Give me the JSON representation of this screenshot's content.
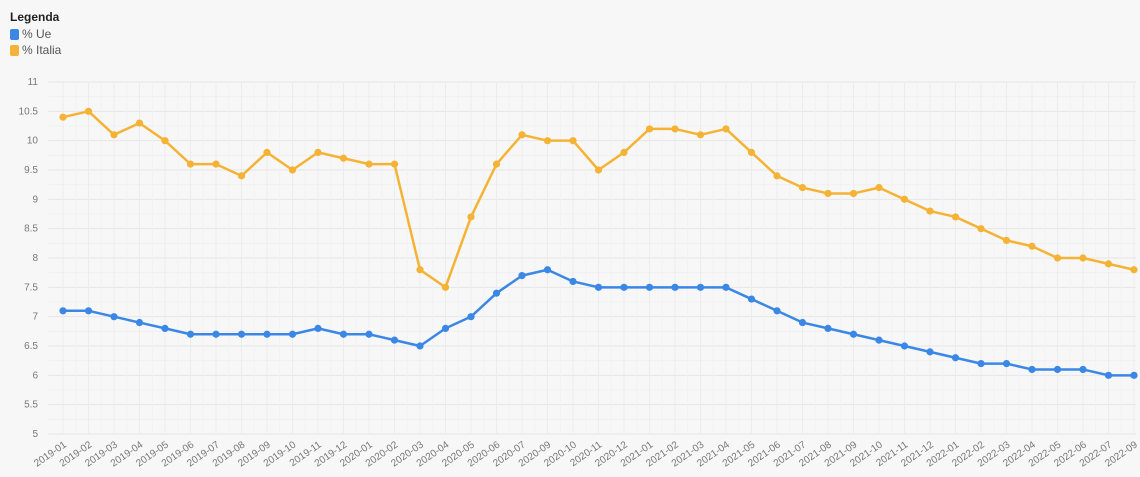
{
  "legend": {
    "title": "Legenda",
    "items": [
      {
        "label": "% Ue",
        "color": "#3b87e6"
      },
      {
        "label": "% Italia",
        "color": "#f5b335"
      }
    ]
  },
  "chart_data": {
    "type": "line",
    "x": [
      "2019-01",
      "2019-02",
      "2019-03",
      "2019-04",
      "2019-05",
      "2019-06",
      "2019-07",
      "2019-08",
      "2019-09",
      "2019-10",
      "2019-11",
      "2019-12",
      "2020-01",
      "2020-02",
      "2020-03",
      "2020-04",
      "2020-05",
      "2020-06",
      "2020-07",
      "2020-09",
      "2020-10",
      "2020-11",
      "2020-12",
      "2021-01",
      "2021-02",
      "2021-03",
      "2021-04",
      "2021-05",
      "2021-06",
      "2021-07",
      "2021-08",
      "2021-09",
      "2021-10",
      "2021-11",
      "2021-12",
      "2022-01",
      "2022-02",
      "2022-03",
      "2022-04",
      "2022-05",
      "2022-06",
      "2022-07",
      "2022-09"
    ],
    "ylim": [
      5,
      11
    ],
    "yticks": [
      "5",
      "5.5",
      "6",
      "6.5",
      "7",
      "7.5",
      "8",
      "8.5",
      "9",
      "9.5",
      "10",
      "10.5",
      "11"
    ],
    "grid": true,
    "legend_position": "top-left",
    "series": [
      {
        "name": "% Ue",
        "color": "#3b87e6",
        "values": [
          7.1,
          7.1,
          7.0,
          6.9,
          6.8,
          6.7,
          6.7,
          6.7,
          6.7,
          6.7,
          6.8,
          6.7,
          6.7,
          6.6,
          6.5,
          6.8,
          7.0,
          7.4,
          7.7,
          7.8,
          7.6,
          7.5,
          7.5,
          7.5,
          7.5,
          7.5,
          7.5,
          7.3,
          7.1,
          6.9,
          6.8,
          6.7,
          6.6,
          6.5,
          6.4,
          6.3,
          6.2,
          6.2,
          6.1,
          6.1,
          6.1,
          6.0,
          6.0
        ]
      },
      {
        "name": "% Italia",
        "color": "#f5b335",
        "values": [
          10.4,
          10.5,
          10.1,
          10.3,
          10.0,
          9.6,
          9.6,
          9.4,
          9.8,
          9.5,
          9.8,
          9.7,
          9.6,
          9.6,
          7.8,
          7.5,
          8.7,
          9.6,
          10.1,
          10.0,
          10.0,
          9.5,
          9.8,
          10.2,
          10.2,
          10.1,
          10.2,
          9.8,
          9.4,
          9.2,
          9.1,
          9.1,
          9.2,
          9.0,
          8.8,
          8.7,
          8.5,
          8.3,
          8.2,
          8.0,
          8.0,
          7.9,
          7.8
        ]
      }
    ]
  }
}
